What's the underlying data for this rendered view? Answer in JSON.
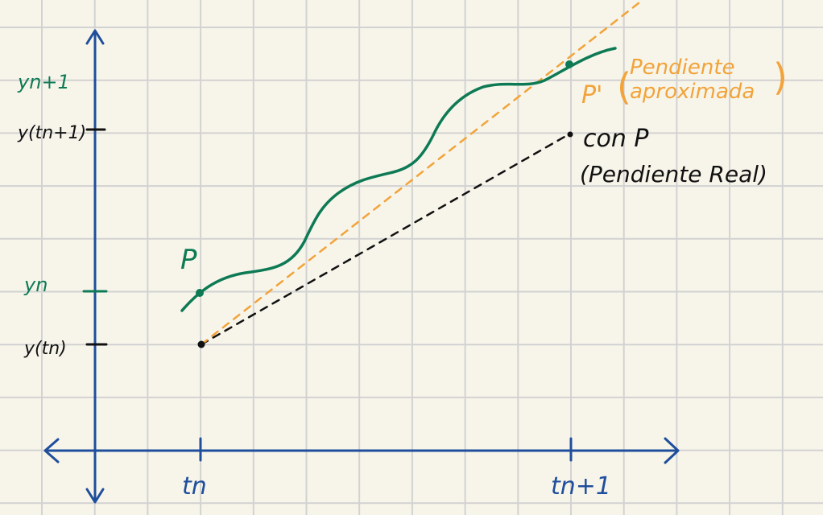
{
  "colors": {
    "background": "#f7f5ea",
    "grid": "#d2d2d2",
    "axis": "#1f4e9c",
    "curve": "#0e7a55",
    "approx": "#f2a33a",
    "real": "#111111"
  },
  "labels": {
    "y_n1": "yn+1",
    "y_tn1": "y(tn+1)",
    "y_n": "yn",
    "y_tn": "y(tn)",
    "t_n": "tn",
    "t_n1": "tn+1",
    "p": "P",
    "p_prime": "P'",
    "pendiente": "Pendiente",
    "aproximada": "aproximada",
    "con_p": "con P",
    "pendiente_real": "(Pendiente Real)"
  }
}
